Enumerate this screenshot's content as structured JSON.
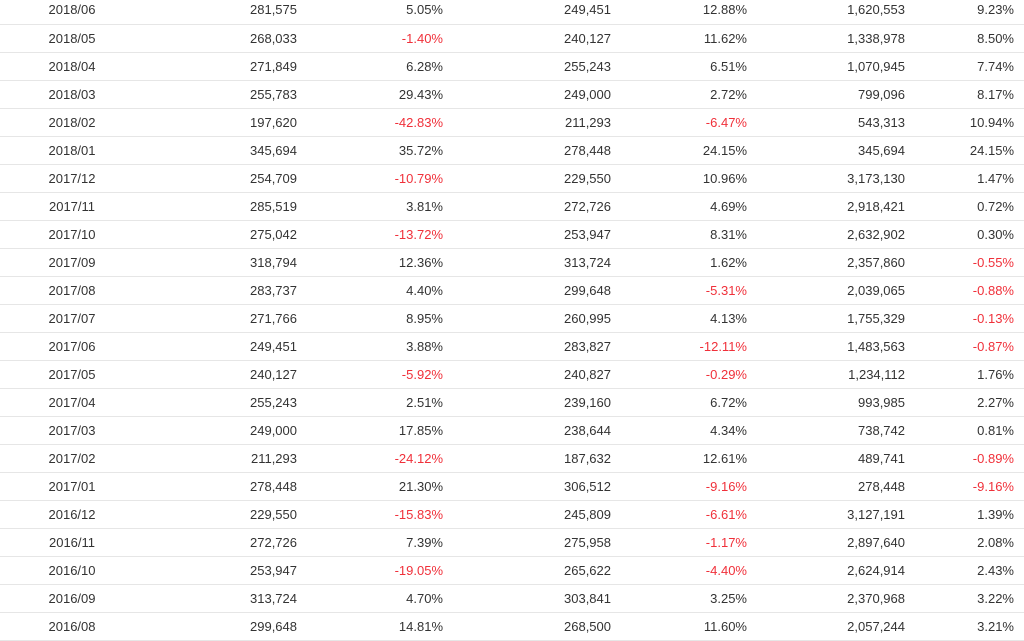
{
  "table": {
    "rows": [
      [
        "2018/06",
        "281,575",
        "5.05%",
        "249,451",
        "12.88%",
        "1,620,553",
        "9.23%"
      ],
      [
        "2018/05",
        "268,033",
        "-1.40%",
        "240,127",
        "11.62%",
        "1,338,978",
        "8.50%"
      ],
      [
        "2018/04",
        "271,849",
        "6.28%",
        "255,243",
        "6.51%",
        "1,070,945",
        "7.74%"
      ],
      [
        "2018/03",
        "255,783",
        "29.43%",
        "249,000",
        "2.72%",
        "799,096",
        "8.17%"
      ],
      [
        "2018/02",
        "197,620",
        "-42.83%",
        "211,293",
        "-6.47%",
        "543,313",
        "10.94%"
      ],
      [
        "2018/01",
        "345,694",
        "35.72%",
        "278,448",
        "24.15%",
        "345,694",
        "24.15%"
      ],
      [
        "2017/12",
        "254,709",
        "-10.79%",
        "229,550",
        "10.96%",
        "3,173,130",
        "1.47%"
      ],
      [
        "2017/11",
        "285,519",
        "3.81%",
        "272,726",
        "4.69%",
        "2,918,421",
        "0.72%"
      ],
      [
        "2017/10",
        "275,042",
        "-13.72%",
        "253,947",
        "8.31%",
        "2,632,902",
        "0.30%"
      ],
      [
        "2017/09",
        "318,794",
        "12.36%",
        "313,724",
        "1.62%",
        "2,357,860",
        "-0.55%"
      ],
      [
        "2017/08",
        "283,737",
        "4.40%",
        "299,648",
        "-5.31%",
        "2,039,065",
        "-0.88%"
      ],
      [
        "2017/07",
        "271,766",
        "8.95%",
        "260,995",
        "4.13%",
        "1,755,329",
        "-0.13%"
      ],
      [
        "2017/06",
        "249,451",
        "3.88%",
        "283,827",
        "-12.11%",
        "1,483,563",
        "-0.87%"
      ],
      [
        "2017/05",
        "240,127",
        "-5.92%",
        "240,827",
        "-0.29%",
        "1,234,112",
        "1.76%"
      ],
      [
        "2017/04",
        "255,243",
        "2.51%",
        "239,160",
        "6.72%",
        "993,985",
        "2.27%"
      ],
      [
        "2017/03",
        "249,000",
        "17.85%",
        "238,644",
        "4.34%",
        "738,742",
        "0.81%"
      ],
      [
        "2017/02",
        "211,293",
        "-24.12%",
        "187,632",
        "12.61%",
        "489,741",
        "-0.89%"
      ],
      [
        "2017/01",
        "278,448",
        "21.30%",
        "306,512",
        "-9.16%",
        "278,448",
        "-9.16%"
      ],
      [
        "2016/12",
        "229,550",
        "-15.83%",
        "245,809",
        "-6.61%",
        "3,127,191",
        "1.39%"
      ],
      [
        "2016/11",
        "272,726",
        "7.39%",
        "275,958",
        "-1.17%",
        "2,897,640",
        "2.08%"
      ],
      [
        "2016/10",
        "253,947",
        "-19.05%",
        "265,622",
        "-4.40%",
        "2,624,914",
        "2.43%"
      ],
      [
        "2016/09",
        "313,724",
        "4.70%",
        "303,841",
        "3.25%",
        "2,370,968",
        "3.22%"
      ],
      [
        "2016/08",
        "299,648",
        "14.81%",
        "268,500",
        "11.60%",
        "2,057,244",
        "3.21%"
      ]
    ]
  },
  "colors": {
    "text": "#333333",
    "negative": "#f0303a",
    "row_border": "#e6e6e6"
  }
}
